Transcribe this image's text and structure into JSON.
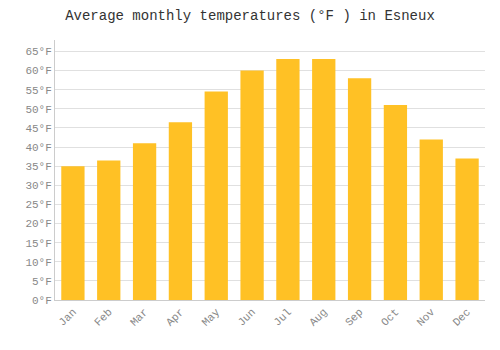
{
  "chart_data": {
    "type": "bar",
    "title": "Average monthly temperatures (°F ) in Esneux",
    "categories": [
      "Jan",
      "Feb",
      "Mar",
      "Apr",
      "May",
      "Jun",
      "Jul",
      "Aug",
      "Sep",
      "Oct",
      "Nov",
      "Dec"
    ],
    "values": [
      35,
      36.5,
      41,
      46.5,
      54.5,
      60,
      63,
      63,
      58,
      51,
      42,
      37
    ],
    "color": "#FFC125",
    "ylim": [
      0,
      68
    ],
    "yticks": [
      {
        "value": 0,
        "label": "0°F"
      },
      {
        "value": 5,
        "label": "5°F"
      },
      {
        "value": 10,
        "label": "10°F"
      },
      {
        "value": 15,
        "label": "15°F"
      },
      {
        "value": 20,
        "label": "20°F"
      },
      {
        "value": 25,
        "label": "25°F"
      },
      {
        "value": 30,
        "label": "30°F"
      },
      {
        "value": 35,
        "label": "35°F"
      },
      {
        "value": 40,
        "label": "40°F"
      },
      {
        "value": 45,
        "label": "45°F"
      },
      {
        "value": 50,
        "label": "50°F"
      },
      {
        "value": 55,
        "label": "55°F"
      },
      {
        "value": 60,
        "label": "60°F"
      },
      {
        "value": 65,
        "label": "65°F"
      }
    ],
    "grid": true
  }
}
